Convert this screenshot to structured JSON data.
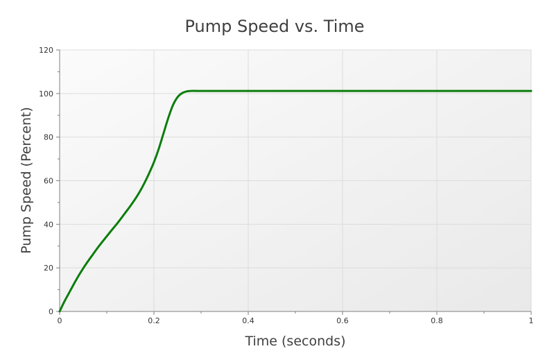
{
  "chart_data": {
    "type": "line",
    "title": "Pump Speed vs. Time",
    "xlabel": "Time (seconds)",
    "ylabel": "Pump Speed (Percent)",
    "xlim": [
      0,
      1
    ],
    "ylim": [
      0,
      120
    ],
    "x_ticks": [
      0,
      0.2,
      0.4,
      0.6,
      0.8,
      1
    ],
    "x_tick_labels": [
      "0",
      "0.2",
      "0.4",
      "0.6",
      "0.8",
      "1"
    ],
    "y_ticks": [
      0,
      20,
      40,
      60,
      80,
      100,
      120
    ],
    "y_tick_labels": [
      "0",
      "20",
      "40",
      "60",
      "80",
      "100",
      "120"
    ],
    "grid": true,
    "legend": "none",
    "series": [
      {
        "color": "#0a7d0a",
        "x": [
          0,
          0.01,
          0.02,
          0.03,
          0.04,
          0.05,
          0.06,
          0.07,
          0.08,
          0.09,
          0.1,
          0.11,
          0.12,
          0.13,
          0.14,
          0.15,
          0.16,
          0.17,
          0.18,
          0.19,
          0.2,
          0.21,
          0.22,
          0.23,
          0.24,
          0.25,
          0.26,
          0.27,
          0.28,
          0.29,
          0.3,
          0.4,
          0.5,
          0.6,
          0.7,
          0.8,
          0.9,
          1.0
        ],
        "y": [
          0,
          4.5,
          8.5,
          12.5,
          16.3,
          19.8,
          23.0,
          26.0,
          29.0,
          31.8,
          34.5,
          37.2,
          39.8,
          42.6,
          45.5,
          48.4,
          51.5,
          55.0,
          59.0,
          63.5,
          68.5,
          74.5,
          81.5,
          88.5,
          94.5,
          98.3,
          100.2,
          101.0,
          101.2,
          101.2,
          101.2,
          101.2,
          101.2,
          101.2,
          101.2,
          101.2,
          101.2,
          101.2
        ]
      }
    ]
  }
}
